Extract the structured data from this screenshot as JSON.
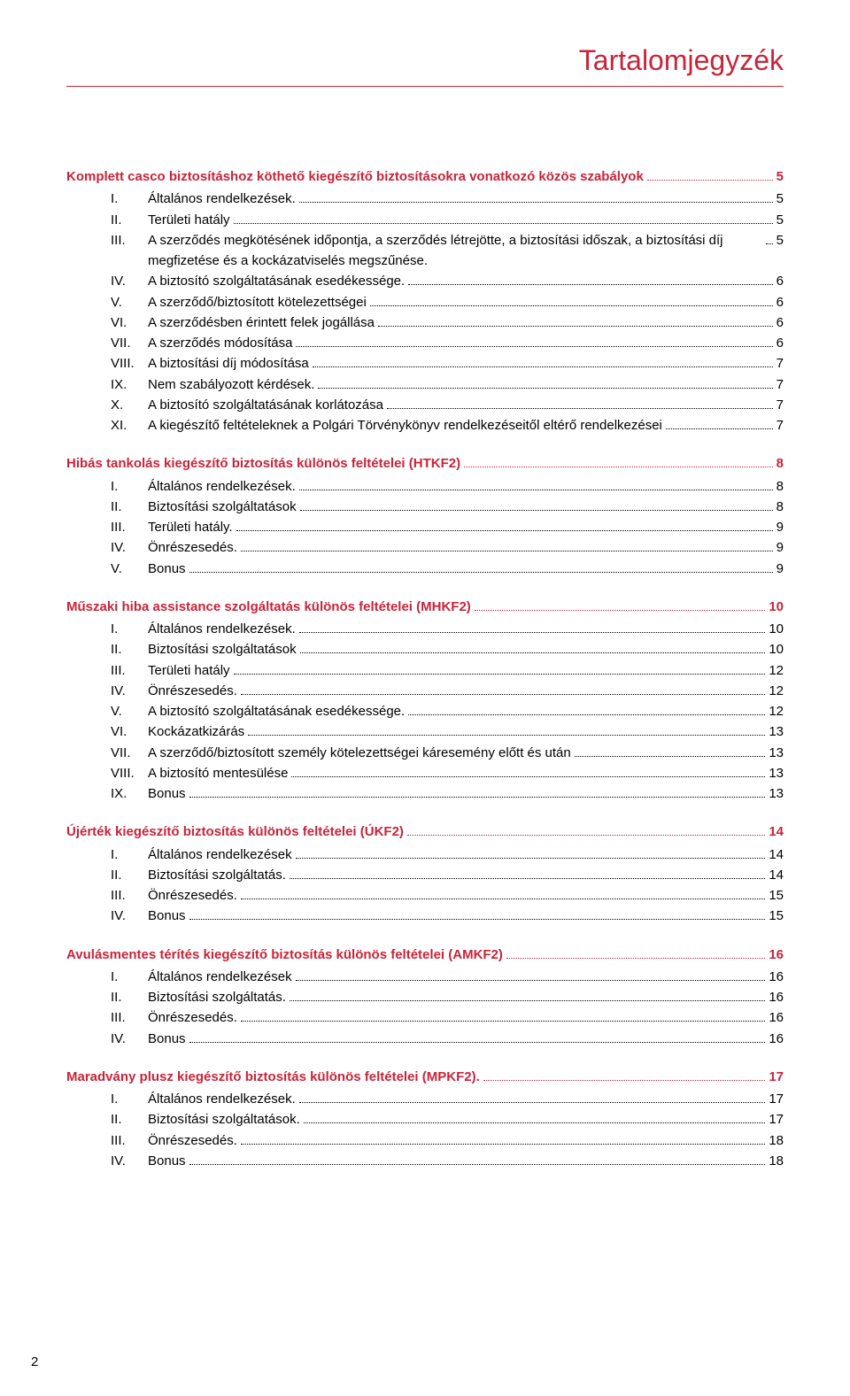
{
  "colors": {
    "accent": "#c8243a",
    "text": "#000000",
    "background": "#ffffff"
  },
  "typography": {
    "title_fontsize": 32,
    "body_fontsize": 15,
    "font_family": "Arial"
  },
  "title": "Tartalomjegyzék",
  "page_number": "2",
  "sections": [
    {
      "heading": "Komplett casco biztosításhoz köthető kiegészítő biztosításokra vonatkozó közös szabályok",
      "page": "5",
      "items": [
        {
          "num": "I.",
          "text": "Általános rendelkezések.",
          "page": "5"
        },
        {
          "num": "II.",
          "text": "Területi hatály",
          "page": "5"
        },
        {
          "num": "III.",
          "text": "A szerződés megkötésének időpontja, a szerződés létrejötte, a biztosítási időszak, a biztosítási díj megfizetése és a kockázatviselés megszűnése.",
          "page": "5"
        },
        {
          "num": "IV.",
          "text": "A biztosító szolgáltatásának esedékessége.",
          "page": "6"
        },
        {
          "num": "V.",
          "text": "A szerződő/biztosított kötelezettségei",
          "page": "6"
        },
        {
          "num": "VI.",
          "text": "A szerződésben érintett felek jogállása",
          "page": "6"
        },
        {
          "num": "VII.",
          "text": "A szerződés módosítása",
          "page": "6"
        },
        {
          "num": "VIII.",
          "text": "A biztosítási díj módosítása",
          "page": "7"
        },
        {
          "num": "IX.",
          "text": "Nem szabályozott kérdések.",
          "page": "7"
        },
        {
          "num": "X.",
          "text": "A biztosító szolgáltatásának korlátozása",
          "page": "7"
        },
        {
          "num": "XI.",
          "text": "A kiegészítő feltételeknek a Polgári Törvénykönyv rendelkezéseitől eltérő rendelkezései",
          "page": "7"
        }
      ]
    },
    {
      "heading": "Hibás tankolás kiegészítő biztosítás különös feltételei (HTKF2)",
      "page": "8",
      "items": [
        {
          "num": "I.",
          "text": "Általános rendelkezések.",
          "page": "8"
        },
        {
          "num": "II.",
          "text": "Biztosítási szolgáltatások",
          "page": "8"
        },
        {
          "num": "III.",
          "text": "Területi hatály.",
          "page": "9"
        },
        {
          "num": "IV.",
          "text": "Önrészesedés.",
          "page": "9"
        },
        {
          "num": "V.",
          "text": "Bonus",
          "page": "9"
        }
      ]
    },
    {
      "heading": "Műszaki hiba assistance szolgáltatás különös feltételei (MHKF2)",
      "page": "10",
      "items": [
        {
          "num": "I.",
          "text": "Általános rendelkezések.",
          "page": "10"
        },
        {
          "num": "II.",
          "text": "Biztosítási szolgáltatások",
          "page": "10"
        },
        {
          "num": "III.",
          "text": "Területi hatály",
          "page": "12"
        },
        {
          "num": "IV.",
          "text": "Önrészesedés.",
          "page": "12"
        },
        {
          "num": "V.",
          "text": "A biztosító szolgáltatásának esedékessége.",
          "page": "12"
        },
        {
          "num": "VI.",
          "text": "Kockázatkizárás",
          "page": "13"
        },
        {
          "num": "VII.",
          "text": "A szerződő/biztosított személy kötelezettségei káresemény előtt és után",
          "page": "13"
        },
        {
          "num": "VIII.",
          "text": "A biztosító mentesülése",
          "page": "13"
        },
        {
          "num": "IX.",
          "text": "Bonus",
          "page": "13"
        }
      ]
    },
    {
      "heading": "Újérték kiegészítő biztosítás különös feltételei (ÚKF2)",
      "page": "14",
      "items": [
        {
          "num": "I.",
          "text": "Általános rendelkezések",
          "page": "14"
        },
        {
          "num": "II.",
          "text": "Biztosítási szolgáltatás.",
          "page": "14"
        },
        {
          "num": "III.",
          "text": "Önrészesedés.",
          "page": "15"
        },
        {
          "num": "IV.",
          "text": "Bonus",
          "page": "15"
        }
      ]
    },
    {
      "heading": "Avulásmentes térítés kiegészítő biztosítás különös feltételei (AMKF2)",
      "page": "16",
      "items": [
        {
          "num": "I.",
          "text": "Általános rendelkezések",
          "page": "16"
        },
        {
          "num": "II.",
          "text": "Biztosítási szolgáltatás.",
          "page": "16"
        },
        {
          "num": "III.",
          "text": "Önrészesedés.",
          "page": "16"
        },
        {
          "num": "IV.",
          "text": "Bonus",
          "page": "16"
        }
      ]
    },
    {
      "heading": "Maradvány plusz kiegészítő biztosítás különös feltételei (MPKF2).",
      "page": "17",
      "items": [
        {
          "num": "I.",
          "text": "Általános rendelkezések.",
          "page": "17"
        },
        {
          "num": "II.",
          "text": "Biztosítási szolgáltatások.",
          "page": "17"
        },
        {
          "num": "III.",
          "text": "Önrészesedés.",
          "page": "18"
        },
        {
          "num": "IV.",
          "text": "Bonus",
          "page": "18"
        }
      ]
    }
  ]
}
